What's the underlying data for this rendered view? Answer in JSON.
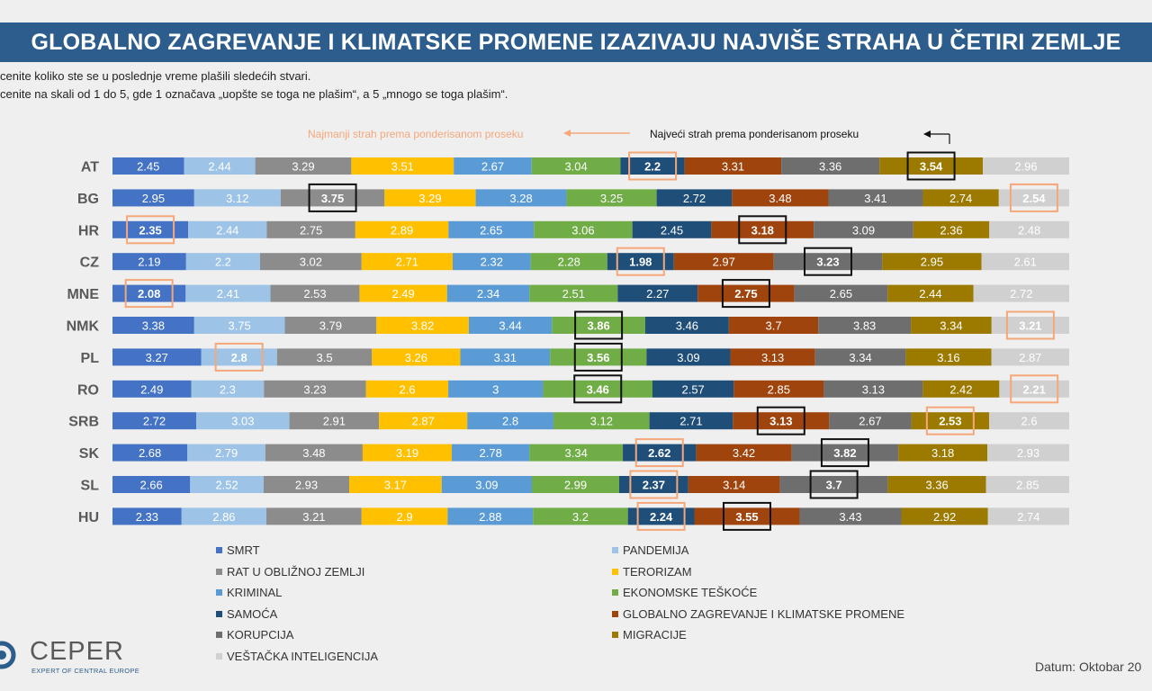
{
  "title": "GLOBALNO ZAGREVANJE I KLIMATSKE PROMENE IZAZIVAJU NAJVIŠE STRAHA U ČETIRI ZEMLJE",
  "question_line1": "cenite koliko ste se u poslednje vreme plašili sledećih stvari.",
  "question_line2": "cenite na skali od 1 do 5, gde 1 označava „uopšte se toga ne plašim“, a 5 „mnogo se toga plašim“.",
  "annotation_min": "Najmanji strah prema ponderisanom proseku",
  "annotation_max": "Najveći strah prema ponderisanom proseku",
  "logo": {
    "name": "CEPER",
    "tagline": "EXPERT OF CENTRAL EUROPE"
  },
  "date": "Datum: Oktobar 20",
  "colors": {
    "min_highlight": "#f5a77a",
    "max_highlight": "#111111",
    "title_bg": "#2c5d8c"
  },
  "chart_data": {
    "type": "bar",
    "orientation": "horizontal",
    "stacked": true,
    "categories": [
      "AT",
      "BG",
      "HR",
      "CZ",
      "MNE",
      "NMK",
      "PL",
      "RO",
      "SRB",
      "SK",
      "SL",
      "HU"
    ],
    "series": [
      {
        "name": "SMRT",
        "color": "#4472c4",
        "values": [
          2.45,
          2.95,
          2.35,
          2.19,
          2.08,
          3.38,
          3.27,
          2.49,
          2.72,
          2.68,
          2.66,
          2.33
        ]
      },
      {
        "name": "PANDEMIJA",
        "color": "#9dc3e6",
        "values": [
          2.44,
          3.12,
          2.44,
          2.2,
          2.41,
          3.75,
          2.8,
          2.3,
          3.03,
          2.79,
          2.52,
          2.86
        ]
      },
      {
        "name": "RAT U OBLIŽNOJ ZEMLJI",
        "color": "#8c8c8c",
        "values": [
          3.29,
          3.75,
          2.75,
          3.02,
          2.53,
          3.79,
          3.5,
          3.23,
          2.91,
          3.48,
          2.93,
          3.21
        ]
      },
      {
        "name": "TERORIZAM",
        "color": "#ffc000",
        "values": [
          3.51,
          3.29,
          2.89,
          2.71,
          2.49,
          3.82,
          3.26,
          2.6,
          2.87,
          3.19,
          3.17,
          2.9
        ]
      },
      {
        "name": "KRIMINAL",
        "color": "#5b9bd5",
        "values": [
          2.67,
          3.28,
          2.65,
          2.32,
          2.34,
          3.44,
          3.31,
          3,
          2.8,
          2.78,
          3.09,
          2.88
        ]
      },
      {
        "name": "EKONOMSKE TEŠKOĆE",
        "color": "#70ad47",
        "values": [
          3.04,
          3.25,
          3.06,
          2.28,
          2.51,
          3.86,
          3.56,
          3.46,
          3.12,
          3.34,
          2.99,
          3.2
        ]
      },
      {
        "name": "SAMOĆA",
        "color": "#1f4e79",
        "values": [
          2.2,
          2.72,
          2.45,
          1.98,
          2.27,
          3.46,
          3.09,
          2.57,
          2.71,
          2.62,
          2.37,
          2.24
        ]
      },
      {
        "name": "GLOBALNO ZAGREVANJE I KLIMATSKE PROMENE",
        "color": "#a0440e",
        "values": [
          3.31,
          3.48,
          3.18,
          2.97,
          2.75,
          3.7,
          3.13,
          2.85,
          3.13,
          3.42,
          3.14,
          3.55
        ]
      },
      {
        "name": "KORUPCIJA",
        "color": "#6e6e6e",
        "values": [
          3.36,
          3.41,
          3.09,
          3.23,
          2.65,
          3.83,
          3.34,
          3.13,
          2.67,
          3.82,
          3.7,
          3.43
        ]
      },
      {
        "name": "MIGRACIJE",
        "color": "#9c7a00",
        "values": [
          3.54,
          2.74,
          2.36,
          2.95,
          2.44,
          3.34,
          3.16,
          2.42,
          2.53,
          3.18,
          3.36,
          2.92
        ]
      },
      {
        "name": "VEŠTAČKA INTELIGENCIJA",
        "color": "#d0d0d0",
        "values": [
          2.96,
          2.54,
          2.48,
          2.61,
          2.72,
          3.21,
          2.87,
          2.21,
          2.6,
          2.93,
          2.85,
          2.74
        ]
      }
    ],
    "min_highlight_series_index": [
      6,
      10,
      0,
      6,
      0,
      10,
      1,
      10,
      9,
      6,
      6,
      6
    ],
    "max_highlight_series_index": [
      9,
      2,
      7,
      8,
      7,
      5,
      5,
      5,
      7,
      8,
      8,
      7
    ],
    "legend_placement": "bottom",
    "grid": false
  }
}
